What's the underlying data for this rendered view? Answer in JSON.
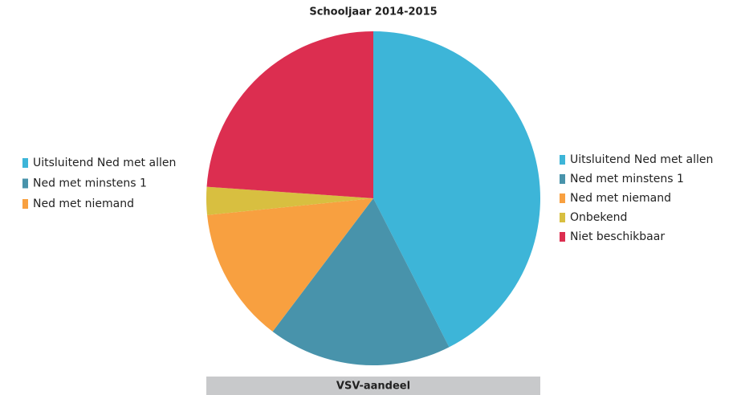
{
  "chart_data": {
    "type": "pie",
    "title": "Schooljaar 2014-2015",
    "categories": [
      "Uitsluitend Ned met allen",
      "Ned met minstens 1",
      "Ned met niemand",
      "Onbekend",
      "Niet beschikbaar"
    ],
    "values": [
      42.5,
      17.8,
      13.1,
      2.7,
      23.9
    ],
    "colors": [
      "#3db5d8",
      "#4893ab",
      "#f8a040",
      "#d8bf40",
      "#dc2e50"
    ],
    "legend": "right",
    "secondary_legend": [
      "Uitsluitend Ned met allen",
      "Ned met minstens 1",
      "Ned met niemand"
    ],
    "footer": "VSV-aandeel"
  }
}
